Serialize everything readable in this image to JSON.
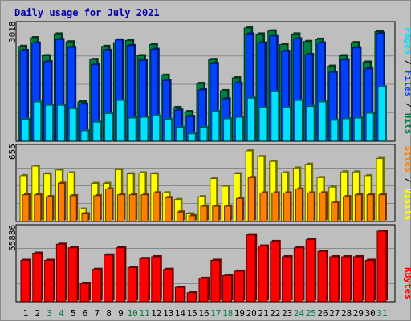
{
  "title": "Daily usage for July 2021",
  "colors": {
    "hits": "#008040",
    "files": "#0040ff",
    "pages": "#00e0ff",
    "visits": "#ffff00",
    "sites": "#ff8000",
    "kbytes": "#ff0000",
    "title": "#0000b0",
    "weekday_label": "#000000",
    "weekend_label": "#008040",
    "legend_separator": "#000000"
  },
  "chart_data": [
    {
      "type": "bar",
      "panel": "hits-files-pages",
      "ymax_label": "3018",
      "ylim": [
        0,
        3018
      ],
      "grid": true,
      "legend": [
        "Pages",
        "Files",
        "Hits"
      ],
      "categories": [
        "1",
        "2",
        "3",
        "4",
        "5",
        "6",
        "7",
        "8",
        "9",
        "10",
        "11",
        "12",
        "13",
        "14",
        "15",
        "16",
        "17",
        "18",
        "19",
        "20",
        "21",
        "22",
        "23",
        "24",
        "25",
        "26",
        "27",
        "28",
        "29",
        "30",
        "31"
      ],
      "series": [
        {
          "name": "Hits",
          "color_key": "hits",
          "values": [
            2530,
            2760,
            2280,
            2860,
            2650,
            1050,
            2180,
            2530,
            2630,
            2690,
            2280,
            2580,
            1760,
            900,
            790,
            1540,
            2180,
            1350,
            1690,
            3018,
            2860,
            2940,
            2580,
            2860,
            2660,
            2720,
            2000,
            2280,
            2630,
            2110,
            2920
          ]
        },
        {
          "name": "Files",
          "color_key": "files",
          "values": [
            2420,
            2620,
            2120,
            2710,
            2500,
            990,
            2040,
            2420,
            2700,
            2550,
            2160,
            2450,
            1620,
            830,
            660,
            1370,
            2070,
            1130,
            1550,
            2860,
            2620,
            2810,
            2400,
            2730,
            2310,
            2620,
            1840,
            2170,
            2490,
            1930,
            2880
          ]
        },
        {
          "name": "Pages",
          "color_key": "pages",
          "values": [
            590,
            1050,
            960,
            960,
            870,
            280,
            510,
            740,
            1090,
            620,
            640,
            680,
            590,
            370,
            200,
            370,
            790,
            600,
            640,
            1150,
            900,
            1320,
            900,
            1090,
            930,
            1050,
            560,
            600,
            620,
            750,
            1450
          ]
        }
      ]
    },
    {
      "type": "bar",
      "panel": "visits-sites",
      "ymax_label": "655",
      "ylim": [
        0,
        655
      ],
      "grid": true,
      "legend": [
        "Sites",
        "Visits"
      ],
      "categories": [
        "1",
        "2",
        "3",
        "4",
        "5",
        "6",
        "7",
        "8",
        "9",
        "10",
        "11",
        "12",
        "13",
        "14",
        "15",
        "16",
        "17",
        "18",
        "19",
        "20",
        "21",
        "22",
        "23",
        "24",
        "25",
        "26",
        "27",
        "28",
        "29",
        "30",
        "31"
      ],
      "series": [
        {
          "name": "Visits",
          "color_key": "visits",
          "values": [
            425,
            513,
            442,
            477,
            451,
            115,
            354,
            354,
            481,
            442,
            451,
            442,
            266,
            204,
            71,
            230,
            398,
            327,
            443,
            655,
            602,
            557,
            451,
            496,
            531,
            407,
            319,
            460,
            460,
            425,
            584
          ]
        },
        {
          "name": "Sites",
          "color_key": "sites",
          "values": [
            248,
            248,
            230,
            354,
            239,
            71,
            239,
            301,
            248,
            248,
            248,
            266,
            221,
            88,
            53,
            142,
            142,
            142,
            213,
            407,
            265,
            265,
            265,
            300,
            265,
            265,
            177,
            230,
            248,
            248,
            248
          ]
        }
      ]
    },
    {
      "type": "bar",
      "panel": "kbytes",
      "ymax_label": "55886",
      "ylim": [
        0,
        55886
      ],
      "grid": true,
      "legend": [
        "KBytes"
      ],
      "categories": [
        "1",
        "2",
        "3",
        "4",
        "5",
        "6",
        "7",
        "8",
        "9",
        "10",
        "11",
        "12",
        "13",
        "14",
        "15",
        "16",
        "17",
        "18",
        "19",
        "20",
        "21",
        "22",
        "23",
        "24",
        "25",
        "26",
        "27",
        "28",
        "29",
        "30",
        "31"
      ],
      "series": [
        {
          "name": "KBytes",
          "color_key": "kbytes",
          "values": [
            32740,
            38430,
            32740,
            45540,
            42690,
            14220,
            25600,
            37000,
            42690,
            27020,
            34150,
            35580,
            25600,
            11380,
            7110,
            18490,
            32740,
            20690,
            24180,
            52940,
            44110,
            47700,
            35580,
            42690,
            49080,
            39860,
            35580,
            35580,
            35580,
            32740,
            55886
          ]
        }
      ]
    }
  ],
  "weekend_days": [
    "3",
    "4",
    "10",
    "11",
    "17",
    "18",
    "24",
    "25",
    "31"
  ]
}
